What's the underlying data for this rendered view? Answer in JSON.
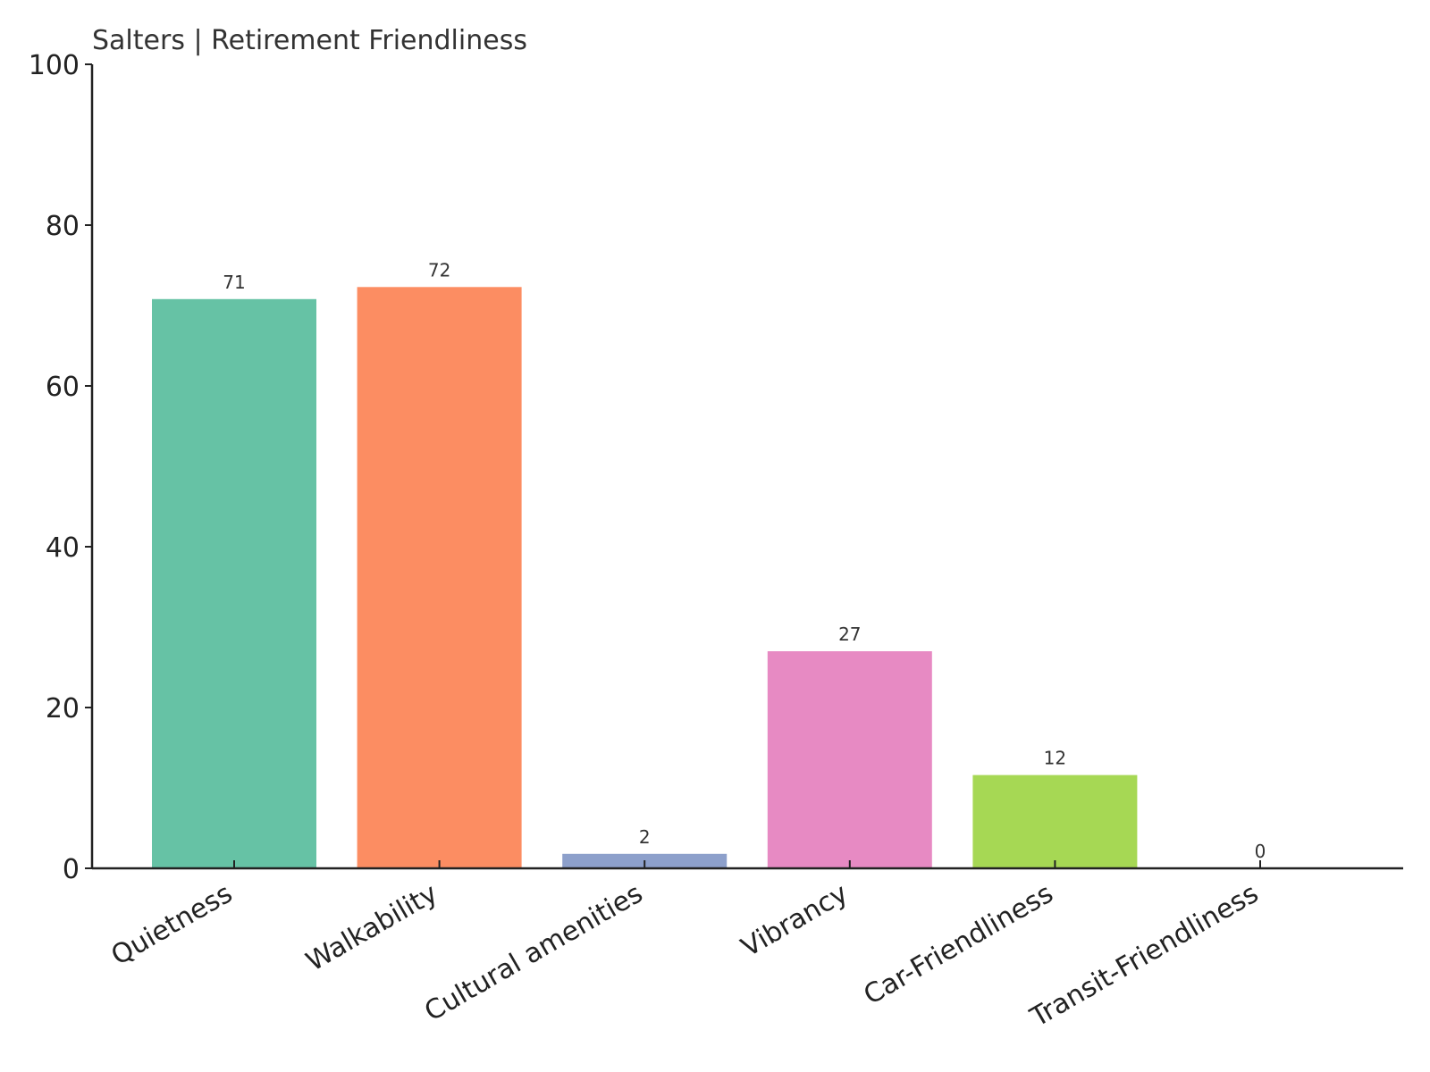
{
  "chart_data": {
    "type": "bar",
    "title": "Salters | Retirement Friendliness",
    "categories": [
      "Quietness",
      "Walkability",
      "Cultural amenities",
      "Vibrancy",
      "Car-Friendliness",
      "Transit-Friendliness"
    ],
    "values": [
      70.8,
      72.3,
      1.8,
      27,
      11.6,
      0
    ],
    "value_labels": [
      "71",
      "72",
      "2",
      "27",
      "12",
      "0"
    ],
    "colors": [
      "#66c2a5",
      "#fc8d62",
      "#8da0cb",
      "#e78ac3",
      "#a6d854",
      "#ffd92f"
    ],
    "ylim": [
      0,
      100
    ],
    "yticks": [
      0,
      20,
      40,
      60,
      80,
      100
    ],
    "grid": false
  }
}
